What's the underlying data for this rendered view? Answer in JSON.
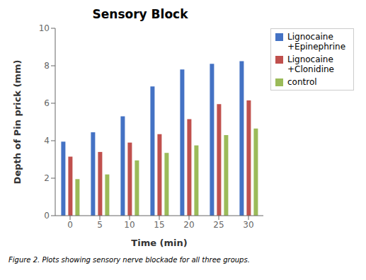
{
  "chart_data": {
    "type": "bar",
    "title": "Sensory Block",
    "xlabel": "Time (min)",
    "ylabel": "Depth of Pin prick (mm)",
    "caption": "Figure 2. Plots showing sensory nerve blockade for all three groups.",
    "categories": [
      0,
      5,
      10,
      15,
      20,
      25,
      30
    ],
    "series": [
      {
        "name": "Lignocaine\n+Epinephrine",
        "color": "#4472C4",
        "values": [
          3.95,
          4.45,
          5.3,
          6.9,
          7.8,
          8.1,
          8.25
        ]
      },
      {
        "name": "Lignocaine\n+Clonidine",
        "color": "#C0504D",
        "values": [
          3.15,
          3.4,
          3.9,
          4.35,
          5.15,
          5.95,
          6.15
        ]
      },
      {
        "name": "control",
        "color": "#9BBB59",
        "values": [
          1.95,
          2.2,
          2.95,
          3.35,
          3.75,
          4.3,
          4.65
        ]
      }
    ],
    "ylim": [
      0,
      10
    ],
    "yticks": [
      0,
      2,
      4,
      6,
      8,
      10
    ],
    "grid": false,
    "legend": "right"
  }
}
